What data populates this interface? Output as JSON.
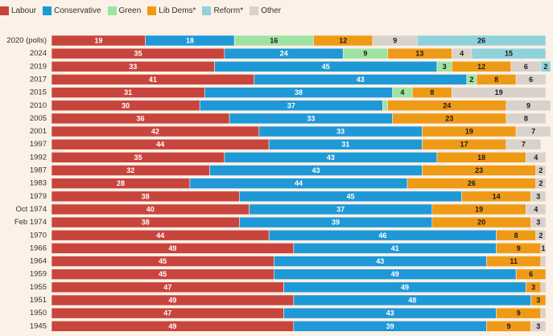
{
  "legend": [
    {
      "name": "Labour",
      "color": "#c8453d"
    },
    {
      "name": "Conservative",
      "color": "#1f98d7"
    },
    {
      "name": "Green",
      "color": "#9fe3a4"
    },
    {
      "name": "Lib Dems*",
      "color": "#ef9a17"
    },
    {
      "name": "Reform*",
      "color": "#8fd2dc"
    },
    {
      "name": "Other",
      "color": "#d9d1cb"
    }
  ],
  "chart_data": {
    "type": "bar",
    "orientation": "horizontal",
    "stacked": true,
    "categories": [
      "2020 (polls)",
      "2024",
      "2019",
      "2017",
      "2015",
      "2010",
      "2005",
      "2001",
      "1997",
      "1992",
      "1987",
      "1983",
      "1979",
      "Oct 1974",
      "Feb 1974",
      "1970",
      "1966",
      "1964",
      "1959",
      "1955",
      "1951",
      "1950",
      "1945"
    ],
    "series": [
      {
        "name": "Labour",
        "color": "#c8453d",
        "text_color": "#ffffff",
        "values": [
          19,
          35,
          33,
          41,
          31,
          30,
          36,
          42,
          44,
          35,
          32,
          28,
          38,
          40,
          38,
          44,
          49,
          45,
          45,
          47,
          49,
          47,
          49
        ]
      },
      {
        "name": "Conservative",
        "color": "#1f98d7",
        "text_color": "#ffffff",
        "values": [
          18,
          24,
          45,
          43,
          38,
          37,
          33,
          33,
          31,
          43,
          43,
          44,
          45,
          37,
          39,
          46,
          41,
          43,
          49,
          49,
          48,
          43,
          39
        ]
      },
      {
        "name": "Green",
        "color": "#9fe3a4",
        "text_color": "#1a1a1a",
        "values": [
          16,
          9,
          3,
          2,
          4,
          1,
          0,
          0,
          0,
          0,
          0,
          0,
          0,
          0,
          0,
          0,
          0,
          0,
          0,
          0,
          0,
          0,
          0
        ]
      },
      {
        "name": "Lib Dems*",
        "color": "#ef9a17",
        "text_color": "#1a1a1a",
        "values": [
          12,
          13,
          12,
          8,
          8,
          24,
          23,
          19,
          17,
          18,
          23,
          26,
          14,
          19,
          20,
          8,
          9,
          11,
          6,
          3,
          3,
          9,
          9
        ]
      },
      {
        "name": "Other",
        "color": "#d9d1cb",
        "text_color": "#1a1a1a",
        "values": [
          9,
          4,
          6,
          6,
          19,
          9,
          8,
          7,
          7,
          4,
          2,
          2,
          3,
          4,
          3,
          2,
          1,
          1,
          0,
          1,
          0,
          1,
          3
        ]
      },
      {
        "name": "Reform*",
        "color": "#8fd2dc",
        "text_color": "#1a1a1a",
        "values": [
          26,
          15,
          2,
          0,
          0,
          0,
          0,
          0,
          0,
          0,
          0,
          0,
          0,
          0,
          0,
          0,
          0,
          0,
          0,
          0,
          0,
          0,
          0
        ]
      }
    ],
    "labels": [
      [
        "19",
        "18",
        "16",
        "12",
        "9",
        "26"
      ],
      [
        "35",
        "24",
        "9",
        "13",
        "4",
        "15"
      ],
      [
        "33",
        "45",
        "3",
        "12",
        "6",
        "2"
      ],
      [
        "41",
        "43",
        "2",
        "8",
        "6",
        ""
      ],
      [
        "31",
        "38",
        "4",
        "8",
        "19",
        ""
      ],
      [
        "30",
        "37",
        "",
        "24",
        "9",
        ""
      ],
      [
        "36",
        "33",
        "",
        "23",
        "8",
        ""
      ],
      [
        "42",
        "33",
        "",
        "19",
        "7",
        ""
      ],
      [
        "44",
        "31",
        "",
        "17",
        "7",
        ""
      ],
      [
        "35",
        "43",
        "",
        "18",
        "4",
        ""
      ],
      [
        "32",
        "43",
        "",
        "23",
        "2",
        ""
      ],
      [
        "28",
        "44",
        "",
        "26",
        "2",
        ""
      ],
      [
        "38",
        "45",
        "",
        "14",
        "3",
        ""
      ],
      [
        "40",
        "37",
        "",
        "19",
        "4",
        ""
      ],
      [
        "38",
        "39",
        "",
        "20",
        "3",
        ""
      ],
      [
        "44",
        "46",
        "",
        "8",
        "2",
        ""
      ],
      [
        "49",
        "41",
        "",
        "9",
        "1",
        ""
      ],
      [
        "45",
        "43",
        "",
        "11",
        "",
        ""
      ],
      [
        "45",
        "49",
        "",
        "6",
        "",
        ""
      ],
      [
        "47",
        "49",
        "",
        "3",
        "",
        ""
      ],
      [
        "49",
        "48",
        "",
        "3",
        "",
        ""
      ],
      [
        "47",
        "43",
        "",
        "9",
        "",
        ""
      ],
      [
        "49",
        "39",
        "",
        "9",
        "3",
        ""
      ]
    ],
    "xlim": [
      0,
      100
    ],
    "grid": false,
    "legend_position": "top-left"
  }
}
